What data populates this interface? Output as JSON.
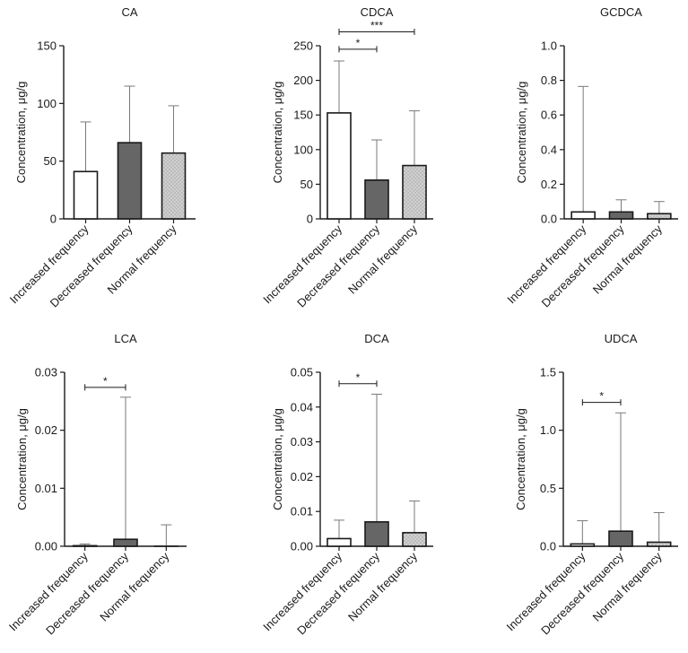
{
  "colors": {
    "increased": "#ffffff",
    "decreased": "#666666",
    "normal": "#d0d0d0",
    "dots": "#8a8a8a",
    "stroke": "#1a1a1a",
    "errorbar": "#7a7a7a"
  },
  "chart_data": [
    {
      "type": "bar",
      "title": "CA",
      "ylabel": "Concentration, μg/g",
      "categories": [
        "Increased frequency",
        "Decreased frequency",
        "Normal frequency"
      ],
      "values": [
        41,
        66,
        57
      ],
      "error_upper": [
        84,
        115,
        98
      ],
      "ylim": [
        0,
        150
      ],
      "yticks": [
        0,
        50,
        100,
        150
      ],
      "ytick_labels": [
        "0",
        "50",
        "100",
        "150"
      ],
      "significance": []
    },
    {
      "type": "bar",
      "title": "CDCA",
      "ylabel": "Concentration, μg/g",
      "categories": [
        "Increased frequency",
        "Decreased frequency",
        "Normal frequency"
      ],
      "values": [
        153,
        56,
        77
      ],
      "error_upper": [
        228,
        114,
        156
      ],
      "ylim": [
        0,
        250
      ],
      "yticks": [
        0,
        50,
        100,
        150,
        200,
        250
      ],
      "ytick_labels": [
        "0",
        "50",
        "100",
        "150",
        "200",
        "250"
      ],
      "significance": [
        {
          "from": 0,
          "to": 1,
          "label": "*",
          "y": 245
        },
        {
          "from": 0,
          "to": 2,
          "label": "***",
          "y": 270
        }
      ]
    },
    {
      "type": "bar",
      "title": "GCDCA",
      "ylabel": "Concentration, μg/g",
      "categories": [
        "Increased frequency",
        "Decreased frequency",
        "Normal frequency"
      ],
      "values": [
        0.04,
        0.04,
        0.03
      ],
      "error_upper": [
        0.765,
        0.11,
        0.1
      ],
      "ylim": [
        0,
        1.0
      ],
      "yticks": [
        0,
        0.2,
        0.4,
        0.6,
        0.8,
        1.0
      ],
      "ytick_labels": [
        "0.0",
        "0.2",
        "0.4",
        "0.6",
        "0.8",
        "1.0"
      ],
      "significance": []
    },
    {
      "type": "bar",
      "title": "LCA",
      "ylabel": "Concentration, μg/g",
      "categories": [
        "Increased frequency",
        "Decreased frequency",
        "Normal frequency"
      ],
      "values": [
        0.0001,
        0.0012,
        0.0
      ],
      "error_upper": [
        0.0004,
        0.0257,
        0.0037
      ],
      "ylim": [
        0,
        0.03
      ],
      "yticks": [
        0,
        0.01,
        0.02,
        0.03
      ],
      "ytick_labels": [
        "0.00",
        "0.01",
        "0.02",
        "0.03"
      ],
      "significance": [
        {
          "from": 0,
          "to": 1,
          "label": "*",
          "y": 0.0274
        }
      ]
    },
    {
      "type": "bar",
      "title": "DCA",
      "ylabel": "Concentration, μg/g",
      "categories": [
        "Increased frequency",
        "Decreased frequency",
        "Normal frequency"
      ],
      "values": [
        0.0022,
        0.007,
        0.0039
      ],
      "error_upper": [
        0.0075,
        0.0437,
        0.013
      ],
      "ylim": [
        0,
        0.05
      ],
      "yticks": [
        0,
        0.01,
        0.02,
        0.03,
        0.04,
        0.05
      ],
      "ytick_labels": [
        "0.00",
        "0.01",
        "0.02",
        "0.03",
        "0.04",
        "0.05"
      ],
      "significance": [
        {
          "from": 0,
          "to": 1,
          "label": "*",
          "y": 0.0467
        }
      ]
    },
    {
      "type": "bar",
      "title": "UDCA",
      "ylabel": "Concentration, μg/g",
      "categories": [
        "Increased frequency",
        "Decreased frequency",
        "Normal frequency"
      ],
      "values": [
        0.02,
        0.13,
        0.035
      ],
      "error_upper": [
        0.22,
        1.15,
        0.29
      ],
      "ylim": [
        0,
        1.5
      ],
      "yticks": [
        0,
        0.5,
        1.0,
        1.5
      ],
      "ytick_labels": [
        "0.0",
        "0.5",
        "1.0",
        "1.5"
      ],
      "significance": [
        {
          "from": 0,
          "to": 1,
          "label": "*",
          "y": 1.24
        }
      ]
    }
  ]
}
